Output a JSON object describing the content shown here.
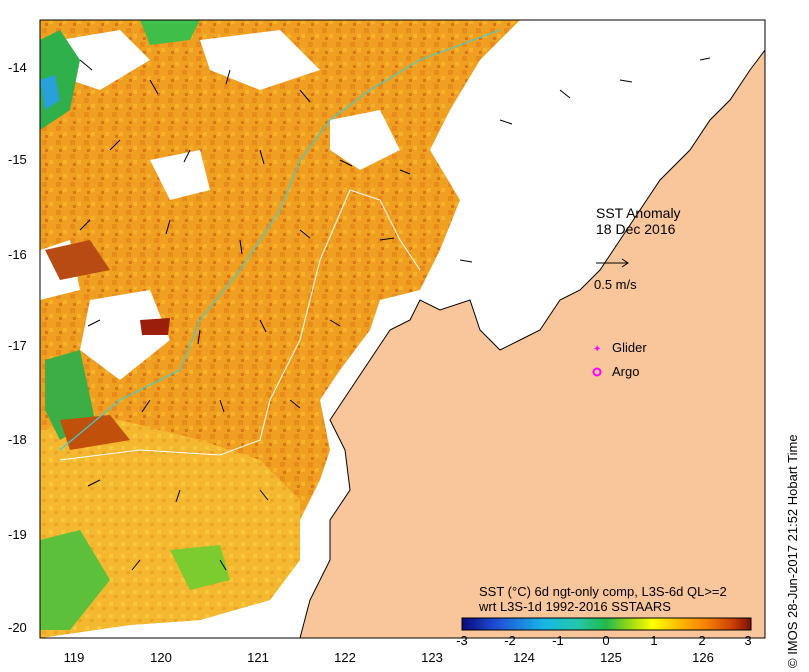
{
  "map": {
    "title_line1": "SST Anomaly",
    "title_line2": "18 Dec 2016",
    "velocity_scale": "0.5 m/s",
    "lon_ticks": [
      "119",
      "120",
      "121",
      "122",
      "123",
      "124",
      "125",
      "126"
    ],
    "lat_ticks": [
      "-14",
      "-15",
      "-16",
      "-17",
      "-18",
      "-19",
      "-20"
    ],
    "lon_range": [
      118.7,
      126.7
    ],
    "lat_range": [
      -20.1,
      -13.6
    ],
    "legend": {
      "glider": "Glider",
      "argo": "Argo",
      "glider_color": "#ff00ff",
      "argo_color": "#ff00ff"
    },
    "description_line1": "SST (°C) 6d ngt-only comp, L3S-6d QL>=2",
    "description_line2": "wrt L3S-1d 1992-2016 SSTAARS",
    "colorbar": {
      "ticks": [
        "-3",
        "-2",
        "-1",
        "0",
        "1",
        "2",
        "3"
      ],
      "min": -3,
      "max": 3,
      "colors": [
        "#0a0a7a",
        "#1e4fd6",
        "#19b4e8",
        "#23c8a8",
        "#22b84a",
        "#9ad818",
        "#ffff00",
        "#ffb400",
        "#f07800",
        "#c83c00",
        "#7a0f00"
      ]
    },
    "credit": "© IMOS 28-Jun-2017 21:52 Hobart Time",
    "land_color": "#f8c69a",
    "ocean_blank_color": "#ffffff"
  }
}
